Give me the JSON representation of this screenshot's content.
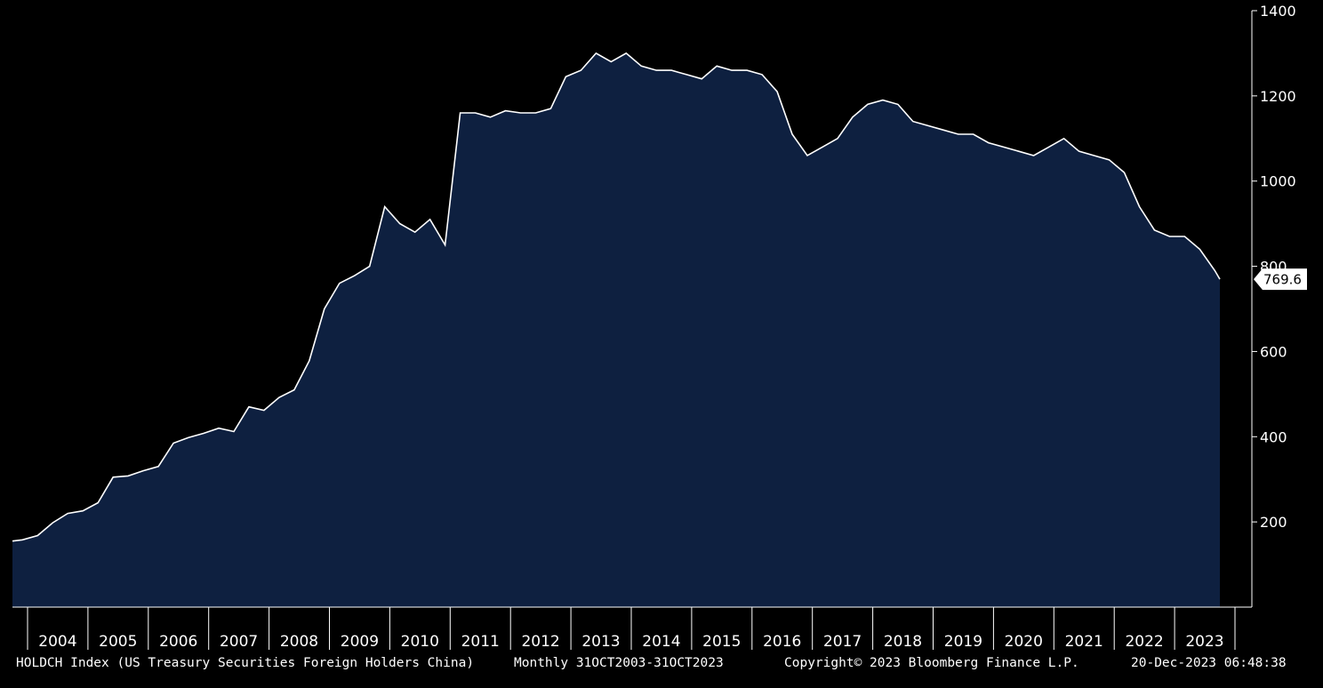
{
  "chart_data": {
    "type": "area",
    "ticker": "HOLDCH Index (US Treasury Securities Foreign Holders China)",
    "frequency_range": "Monthly 31OCT2003-31OCT2023",
    "copyright": "Copyright© 2023 Bloomberg Finance L.P.",
    "timestamp": "20-Dec-2023 06:48:38",
    "last_value_label": "769.6",
    "last_value": 769.6,
    "ylim": [
      0,
      1400
    ],
    "xlim": [
      "2003-10",
      "2023-10"
    ],
    "yticks": [
      "200",
      "400",
      "600",
      "800",
      "1000",
      "1200",
      "1400"
    ],
    "xticks": [
      "2004",
      "2005",
      "2006",
      "2007",
      "2008",
      "2009",
      "2010",
      "2011",
      "2012",
      "2013",
      "2014",
      "2015",
      "2016",
      "2017",
      "2018",
      "2019",
      "2020",
      "2021",
      "2022",
      "2023"
    ],
    "grid": false,
    "colors": {
      "background": "#000000",
      "fill": "#0e2040",
      "line": "#ffffff",
      "axis": "#ffffff"
    },
    "x": [
      "2003-10",
      "2003-12",
      "2004-03",
      "2004-06",
      "2004-09",
      "2004-12",
      "2005-03",
      "2005-06",
      "2005-09",
      "2005-12",
      "2006-03",
      "2006-06",
      "2006-09",
      "2006-12",
      "2007-03",
      "2007-06",
      "2007-09",
      "2007-12",
      "2008-03",
      "2008-06",
      "2008-09",
      "2008-12",
      "2009-03",
      "2009-06",
      "2009-09",
      "2009-12",
      "2010-03",
      "2010-06",
      "2010-09",
      "2010-12",
      "2011-03",
      "2011-06",
      "2011-09",
      "2011-12",
      "2012-03",
      "2012-06",
      "2012-09",
      "2012-12",
      "2013-03",
      "2013-06",
      "2013-09",
      "2013-12",
      "2014-03",
      "2014-06",
      "2014-09",
      "2014-12",
      "2015-03",
      "2015-06",
      "2015-09",
      "2015-12",
      "2016-03",
      "2016-06",
      "2016-09",
      "2016-12",
      "2017-03",
      "2017-06",
      "2017-09",
      "2017-12",
      "2018-03",
      "2018-06",
      "2018-09",
      "2018-12",
      "2019-03",
      "2019-06",
      "2019-09",
      "2019-12",
      "2020-03",
      "2020-06",
      "2020-09",
      "2020-12",
      "2021-03",
      "2021-06",
      "2021-09",
      "2021-12",
      "2022-03",
      "2022-06",
      "2022-09",
      "2022-12",
      "2023-03",
      "2023-06",
      "2023-09",
      "2023-10"
    ],
    "values": [
      155,
      158,
      168,
      198,
      220,
      226,
      245,
      305,
      308,
      320,
      330,
      385,
      398,
      408,
      420,
      412,
      470,
      462,
      492,
      510,
      578,
      700,
      760,
      778,
      800,
      940,
      900,
      880,
      910,
      850,
      1160,
      1160,
      1150,
      1165,
      1160,
      1160,
      1170,
      1245,
      1260,
      1300,
      1280,
      1300,
      1270,
      1260,
      1260,
      1250,
      1240,
      1270,
      1260,
      1260,
      1250,
      1210,
      1110,
      1060,
      1080,
      1100,
      1150,
      1180,
      1190,
      1180,
      1140,
      1130,
      1120,
      1110,
      1110,
      1090,
      1080,
      1070,
      1060,
      1080,
      1100,
      1070,
      1060,
      1050,
      1020,
      940,
      885,
      870,
      870,
      840,
      790,
      769.6
    ]
  }
}
